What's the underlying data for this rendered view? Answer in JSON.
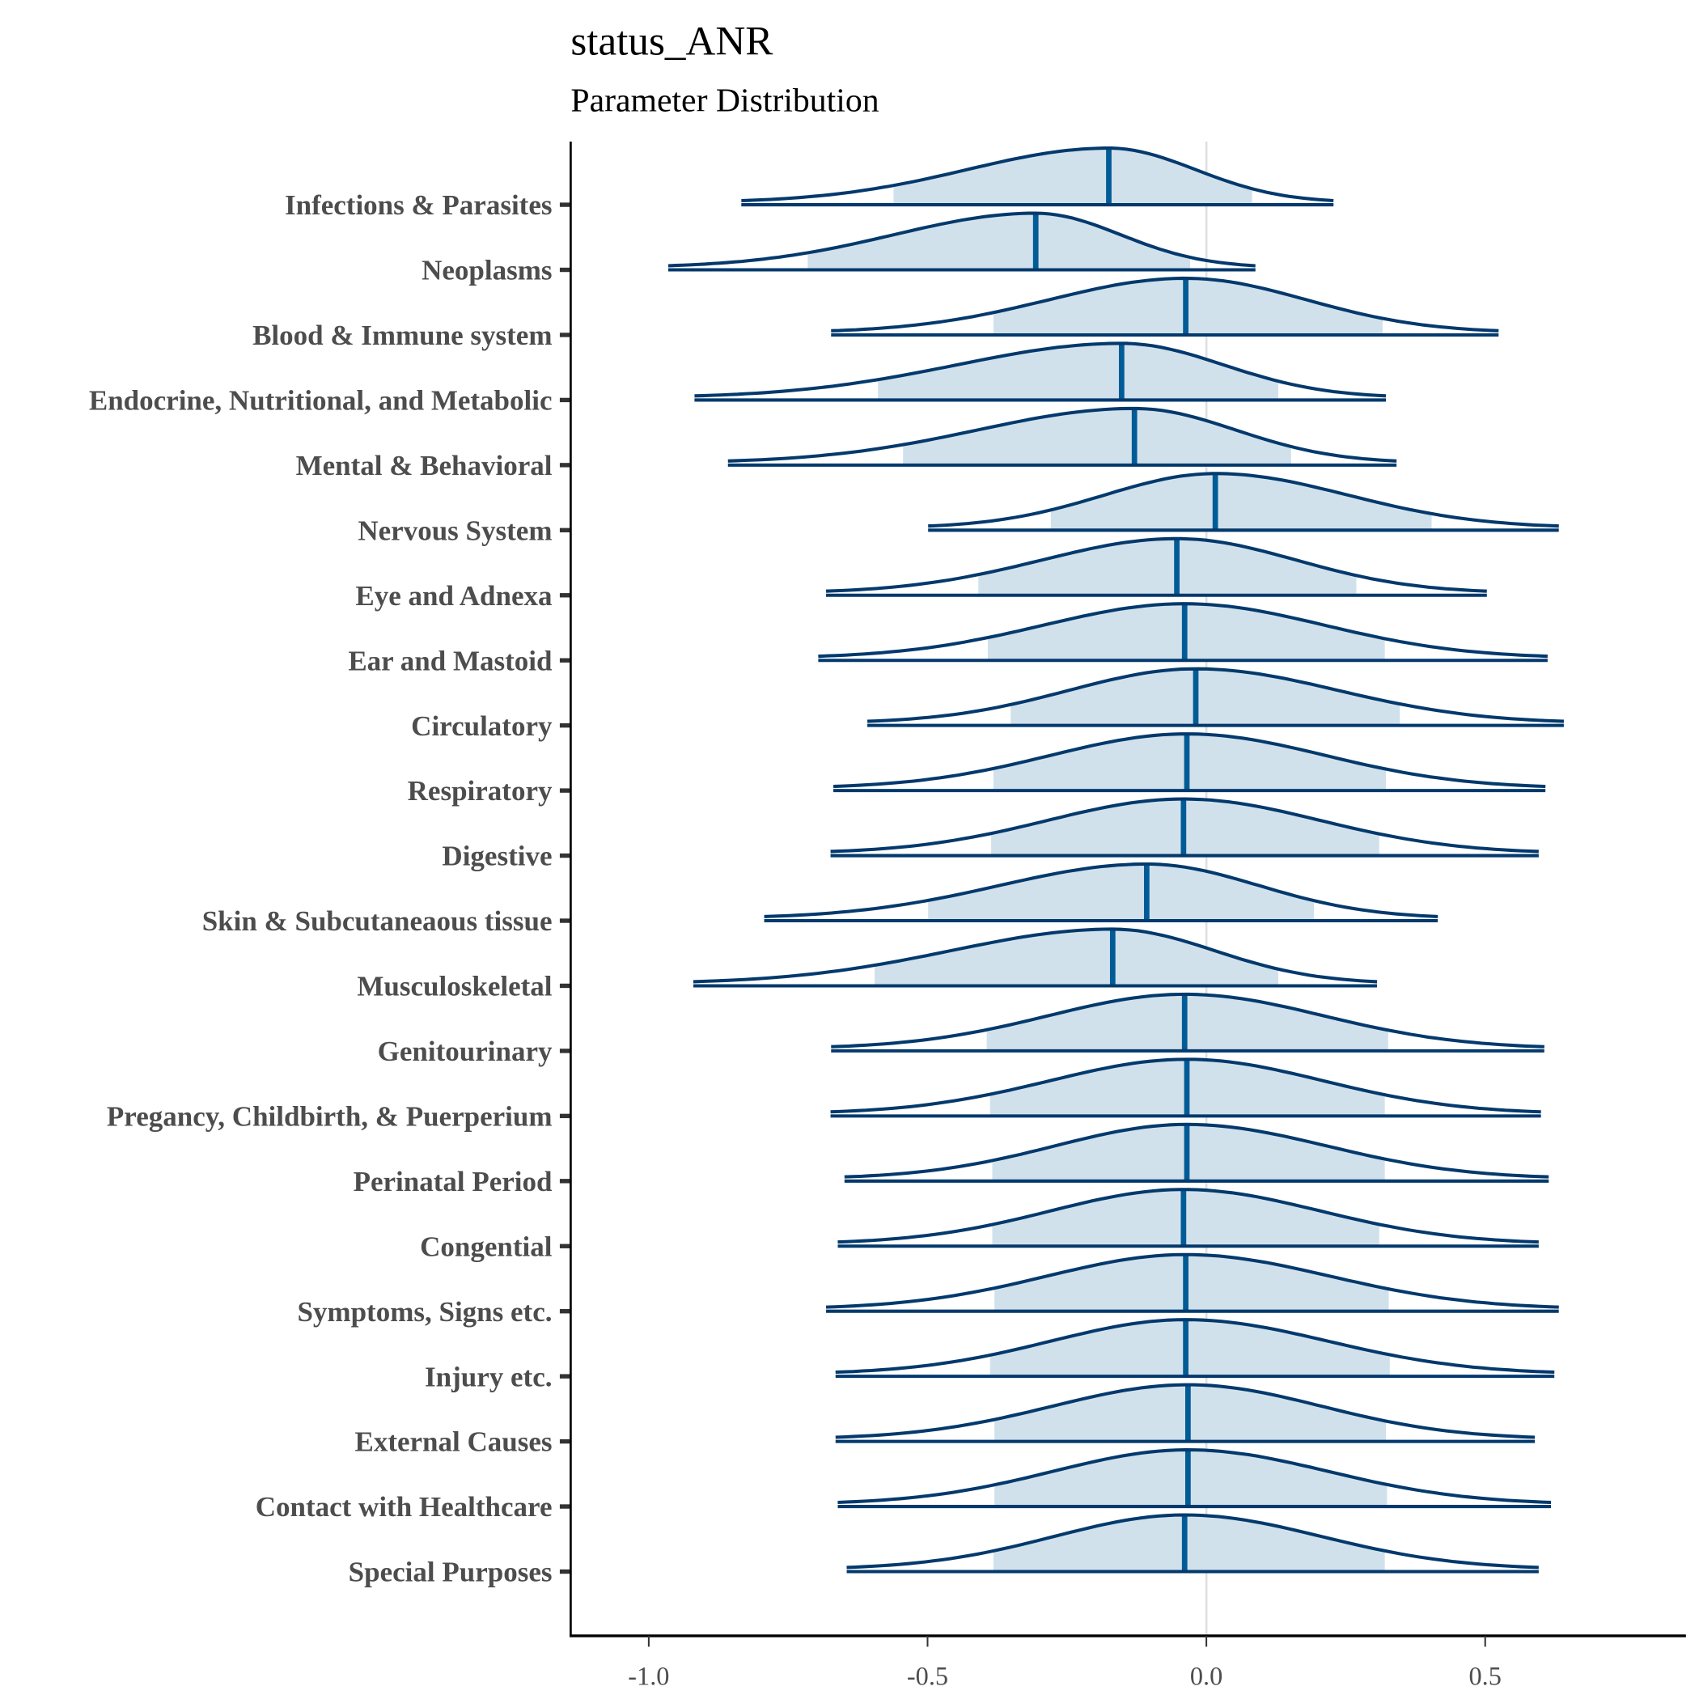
{
  "title": "status_ANR",
  "subtitle": "Parameter Distribution",
  "colors": {
    "fill": "#d1e1ec",
    "outline": "#03396c",
    "median": "#005b96",
    "zero_line": "#e0e0e0"
  },
  "chart_data": {
    "type": "area",
    "subtype": "ridgeline density (mcmc areas)",
    "title": "status_ANR",
    "subtitle": "Parameter Distribution",
    "xlabel": "",
    "ylabel": "",
    "xlim": [
      -1.14,
      0.86
    ],
    "xticks": [
      -1.0,
      -0.5,
      0.0,
      0.5
    ],
    "xtick_labels": [
      "-1.0",
      "-0.5",
      "0.0",
      "0.5"
    ],
    "reference_line_x": 0.0,
    "grid": false,
    "series": [
      {
        "name": "Infections & Parasites",
        "min": -0.834,
        "max": 0.228,
        "inner_low": -0.561,
        "inner_high": 0.082,
        "median": -0.175
      },
      {
        "name": "Neoplasms",
        "min": -0.965,
        "max": 0.088,
        "inner_low": -0.715,
        "inner_high": -0.029,
        "median": -0.306
      },
      {
        "name": "Blood & Immune system",
        "min": -0.673,
        "max": 0.524,
        "inner_low": -0.382,
        "inner_high": 0.316,
        "median": -0.037
      },
      {
        "name": "Endocrine, Nutritional, and Metabolic",
        "min": -0.918,
        "max": 0.322,
        "inner_low": -0.589,
        "inner_high": 0.129,
        "median": -0.152
      },
      {
        "name": "Mental & Behavioral",
        "min": -0.858,
        "max": 0.341,
        "inner_low": -0.544,
        "inner_high": 0.152,
        "median": -0.129
      },
      {
        "name": "Nervous System",
        "min": -0.499,
        "max": 0.632,
        "inner_low": -0.279,
        "inner_high": 0.404,
        "median": 0.016
      },
      {
        "name": "Eye and Adnexa",
        "min": -0.682,
        "max": 0.503,
        "inner_low": -0.409,
        "inner_high": 0.269,
        "median": -0.053
      },
      {
        "name": "Ear and Mastoid",
        "min": -0.696,
        "max": 0.612,
        "inner_low": -0.392,
        "inner_high": 0.32,
        "median": -0.039
      },
      {
        "name": "Circulatory",
        "min": -0.608,
        "max": 0.641,
        "inner_low": -0.351,
        "inner_high": 0.347,
        "median": -0.019
      },
      {
        "name": "Respiratory",
        "min": -0.669,
        "max": 0.608,
        "inner_low": -0.382,
        "inner_high": 0.322,
        "median": -0.035
      },
      {
        "name": "Digestive",
        "min": -0.674,
        "max": 0.596,
        "inner_low": -0.386,
        "inner_high": 0.31,
        "median": -0.041
      },
      {
        "name": "Skin & Subcutaneaous tissue",
        "min": -0.793,
        "max": 0.415,
        "inner_low": -0.499,
        "inner_high": 0.193,
        "median": -0.107
      },
      {
        "name": "Musculoskeletal",
        "min": -0.92,
        "max": 0.306,
        "inner_low": -0.595,
        "inner_high": 0.129,
        "median": -0.168
      },
      {
        "name": "Genitourinary",
        "min": -0.673,
        "max": 0.606,
        "inner_low": -0.394,
        "inner_high": 0.326,
        "median": -0.039
      },
      {
        "name": "Pregancy, Childbirth, & Puerperium",
        "min": -0.674,
        "max": 0.6,
        "inner_low": -0.388,
        "inner_high": 0.32,
        "median": -0.035
      },
      {
        "name": "Perinatal Period",
        "min": -0.649,
        "max": 0.614,
        "inner_low": -0.384,
        "inner_high": 0.32,
        "median": -0.035
      },
      {
        "name": "Congential",
        "min": -0.661,
        "max": 0.596,
        "inner_low": -0.384,
        "inner_high": 0.31,
        "median": -0.041
      },
      {
        "name": "Symptoms, Signs etc.",
        "min": -0.682,
        "max": 0.632,
        "inner_low": -0.38,
        "inner_high": 0.327,
        "median": -0.037
      },
      {
        "name": "Injury etc.",
        "min": -0.665,
        "max": 0.624,
        "inner_low": -0.388,
        "inner_high": 0.329,
        "median": -0.037
      },
      {
        "name": "External Causes",
        "min": -0.665,
        "max": 0.589,
        "inner_low": -0.38,
        "inner_high": 0.322,
        "median": -0.033
      },
      {
        "name": "Contact with Healthcare",
        "min": -0.661,
        "max": 0.618,
        "inner_low": -0.38,
        "inner_high": 0.324,
        "median": -0.033
      },
      {
        "name": "Special Purposes",
        "min": -0.645,
        "max": 0.596,
        "inner_low": -0.382,
        "inner_high": 0.32,
        "median": -0.039
      }
    ]
  }
}
